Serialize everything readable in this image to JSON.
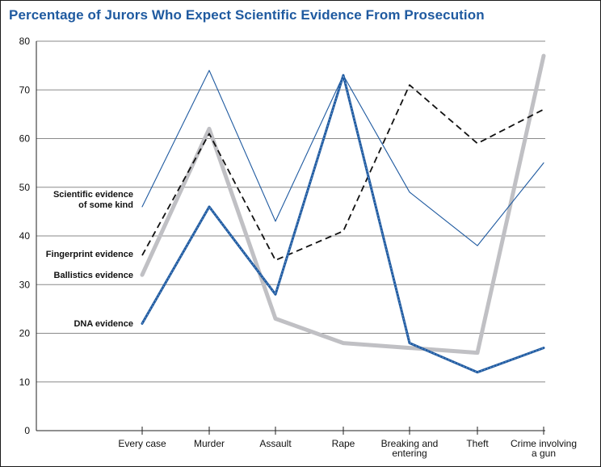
{
  "chart_data": {
    "type": "line",
    "title": "Percentage of Jurors Who Expect Scientific Evidence From Prosecution",
    "xlabel": "",
    "ylabel": "",
    "ylim": [
      0,
      80
    ],
    "yticks": [
      "0",
      "10",
      "20",
      "30",
      "40",
      "50",
      "60",
      "70",
      "80"
    ],
    "grid": "horizontal",
    "categories": [
      [
        "Every case"
      ],
      [
        "Murder"
      ],
      [
        "Assault"
      ],
      [
        "Rape"
      ],
      [
        "Breaking and",
        "entering"
      ],
      [
        "Theft"
      ],
      [
        "Crime involving",
        "a gun"
      ]
    ],
    "series": [
      {
        "name": [
          "Scientific evidence",
          "of some kind"
        ],
        "values": [
          46,
          74,
          43,
          73,
          49,
          38,
          55
        ],
        "color": "#1f5aa0",
        "style": "thin"
      },
      {
        "name": [
          "Fingerprint evidence"
        ],
        "values": [
          36,
          61,
          35,
          41,
          71,
          59,
          66
        ],
        "color": "#111111",
        "style": "dashed"
      },
      {
        "name": [
          "Ballistics evidence"
        ],
        "values": [
          32,
          62,
          23,
          18,
          17,
          16,
          77
        ],
        "color": "#c0c0c4",
        "style": "thick"
      },
      {
        "name": [
          "DNA evidence"
        ],
        "values": [
          22,
          46,
          28,
          73,
          18,
          12,
          17
        ],
        "color": "#1f5aa0",
        "style": "medium-dotted"
      }
    ]
  }
}
